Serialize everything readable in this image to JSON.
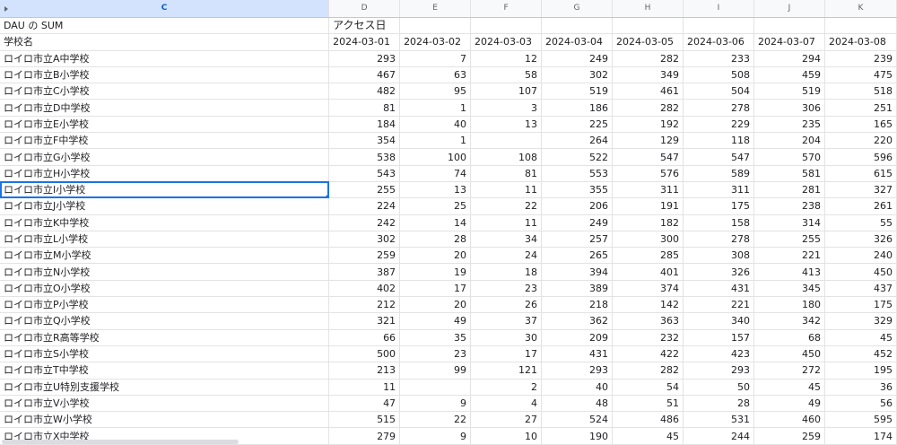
{
  "columns": {
    "c": "C",
    "letters": [
      "D",
      "E",
      "F",
      "G",
      "H",
      "I",
      "J",
      "K"
    ]
  },
  "pivot": {
    "value_label": "DAU の SUM",
    "column_field": "アクセス日",
    "row_field": "学校名"
  },
  "dates": [
    "2024-03-01",
    "2024-03-02",
    "2024-03-03",
    "2024-03-04",
    "2024-03-05",
    "2024-03-06",
    "2024-03-07",
    "2024-03-08"
  ],
  "selected_cell": "ロイロ市立I小学校",
  "accent_color": "#1a73e8",
  "rows": [
    {
      "name": "ロイロ市立A中学校",
      "values": [
        "293",
        "7",
        "12",
        "249",
        "282",
        "233",
        "294",
        "239"
      ]
    },
    {
      "name": "ロイロ市立B小学校",
      "values": [
        "467",
        "63",
        "58",
        "302",
        "349",
        "508",
        "459",
        "475"
      ]
    },
    {
      "name": "ロイロ市立C小学校",
      "values": [
        "482",
        "95",
        "107",
        "519",
        "461",
        "504",
        "519",
        "518"
      ]
    },
    {
      "name": "ロイロ市立D中学校",
      "values": [
        "81",
        "1",
        "3",
        "186",
        "282",
        "278",
        "306",
        "251"
      ]
    },
    {
      "name": "ロイロ市立E小学校",
      "values": [
        "184",
        "40",
        "13",
        "225",
        "192",
        "229",
        "235",
        "165"
      ]
    },
    {
      "name": "ロイロ市立F中学校",
      "values": [
        "354",
        "1",
        "",
        "264",
        "129",
        "118",
        "204",
        "220"
      ]
    },
    {
      "name": "ロイロ市立G小学校",
      "values": [
        "538",
        "100",
        "108",
        "522",
        "547",
        "547",
        "570",
        "596"
      ]
    },
    {
      "name": "ロイロ市立H小学校",
      "values": [
        "543",
        "74",
        "81",
        "553",
        "576",
        "589",
        "581",
        "615"
      ]
    },
    {
      "name": "ロイロ市立I小学校",
      "values": [
        "255",
        "13",
        "11",
        "355",
        "311",
        "311",
        "281",
        "327"
      ]
    },
    {
      "name": "ロイロ市立J小学校",
      "values": [
        "224",
        "25",
        "22",
        "206",
        "191",
        "175",
        "238",
        "261"
      ]
    },
    {
      "name": "ロイロ市立K中学校",
      "values": [
        "242",
        "14",
        "11",
        "249",
        "182",
        "158",
        "314",
        "55"
      ]
    },
    {
      "name": "ロイロ市立L小学校",
      "values": [
        "302",
        "28",
        "34",
        "257",
        "300",
        "278",
        "255",
        "326"
      ]
    },
    {
      "name": "ロイロ市立M小学校",
      "values": [
        "259",
        "20",
        "24",
        "265",
        "285",
        "308",
        "221",
        "240"
      ]
    },
    {
      "name": "ロイロ市立N小学校",
      "values": [
        "387",
        "19",
        "18",
        "394",
        "401",
        "326",
        "413",
        "450"
      ]
    },
    {
      "name": "ロイロ市立O小学校",
      "values": [
        "402",
        "17",
        "23",
        "389",
        "374",
        "431",
        "345",
        "437"
      ]
    },
    {
      "name": "ロイロ市立P小学校",
      "values": [
        "212",
        "20",
        "26",
        "218",
        "142",
        "221",
        "180",
        "175"
      ]
    },
    {
      "name": "ロイロ市立Q小学校",
      "values": [
        "321",
        "49",
        "37",
        "362",
        "363",
        "340",
        "342",
        "329"
      ]
    },
    {
      "name": "ロイロ市立R高等学校",
      "values": [
        "66",
        "35",
        "30",
        "209",
        "232",
        "157",
        "68",
        "45"
      ]
    },
    {
      "name": "ロイロ市立S小学校",
      "values": [
        "500",
        "23",
        "17",
        "431",
        "422",
        "423",
        "450",
        "452"
      ]
    },
    {
      "name": "ロイロ市立T中学校",
      "values": [
        "213",
        "99",
        "121",
        "293",
        "282",
        "293",
        "272",
        "195"
      ]
    },
    {
      "name": "ロイロ市立U特別支援学校",
      "values": [
        "11",
        "",
        "2",
        "40",
        "54",
        "50",
        "45",
        "36"
      ]
    },
    {
      "name": "ロイロ市立V小学校",
      "values": [
        "47",
        "9",
        "4",
        "48",
        "51",
        "28",
        "49",
        "56"
      ]
    },
    {
      "name": "ロイロ市立W小学校",
      "values": [
        "515",
        "22",
        "27",
        "524",
        "486",
        "531",
        "460",
        "595"
      ]
    },
    {
      "name": "ロイロ市立X中学校",
      "values": [
        "279",
        "9",
        "10",
        "190",
        "45",
        "244",
        "259",
        "174"
      ]
    }
  ]
}
